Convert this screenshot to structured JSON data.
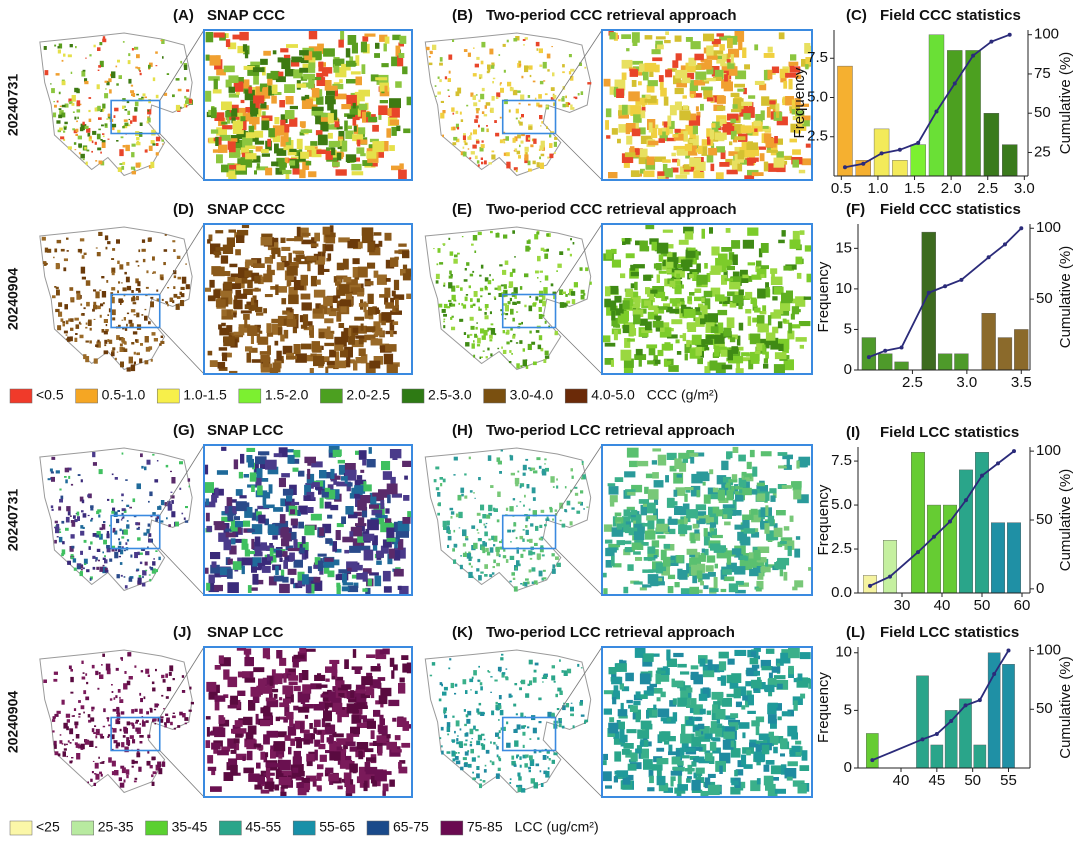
{
  "row_labels": [
    "20240731",
    "20240904",
    "20240731",
    "20240904"
  ],
  "panels": [
    {
      "label": "(A)",
      "title": "SNAP CCC"
    },
    {
      "label": "(B)",
      "title": "Two-period CCC retrieval approach"
    },
    {
      "label": "(D)",
      "title": "SNAP CCC"
    },
    {
      "label": "(E)",
      "title": "Two-period CCC retrieval approach"
    },
    {
      "label": "(G)",
      "title": "SNAP LCC"
    },
    {
      "label": "(H)",
      "title": "Two-period LCC retrieval approach"
    },
    {
      "label": "(J)",
      "title": "SNAP LCC"
    },
    {
      "label": "(K)",
      "title": "Two-period LCC retrieval approach"
    }
  ],
  "legends": [
    {
      "items": [
        {
          "label": "<0.5",
          "color": "#f03a2a"
        },
        {
          "label": "0.5-1.0",
          "color": "#f5a623"
        },
        {
          "label": "1.0-1.5",
          "color": "#f7ef4a"
        },
        {
          "label": "1.5-2.0",
          "color": "#7cf030"
        },
        {
          "label": "2.0-2.5",
          "color": "#4ca020"
        },
        {
          "label": "2.5-3.0",
          "color": "#2e7a14"
        },
        {
          "label": "3.0-4.0",
          "color": "#7a5010"
        },
        {
          "label": "4.0-5.0",
          "color": "#6b2a08"
        }
      ],
      "unit": "CCC (g/m²)"
    },
    {
      "items": [
        {
          "label": "<25",
          "color": "#fbf7a8"
        },
        {
          "label": "25-35",
          "color": "#b8eaa0"
        },
        {
          "label": "35-45",
          "color": "#5ad030"
        },
        {
          "label": "45-55",
          "color": "#2aa58a"
        },
        {
          "label": "55-65",
          "color": "#1890a8"
        },
        {
          "label": "65-75",
          "color": "#1a4a8a"
        },
        {
          "label": "75-85",
          "color": "#6a0a50"
        }
      ],
      "unit": "LCC (ug/cm²)"
    }
  ],
  "chart_data": [
    {
      "type": "bar",
      "panel": "(C)",
      "title": "Field CCC statistics",
      "x": [
        0.55,
        0.8,
        1.05,
        1.3,
        1.55,
        1.8,
        2.05,
        2.3,
        2.55,
        2.8
      ],
      "series": [
        {
          "values": [
            7,
            1,
            3,
            1,
            2,
            9,
            8,
            8,
            4,
            2
          ],
          "colors": [
            "#f5b030",
            "#f5b030",
            "#f3ea5a",
            "#f3ea5a",
            "#7cf030",
            "#6ae036",
            "#4ca020",
            "#4ca020",
            "#3a7a1c",
            "#3a7a1c"
          ]
        },
        {
          "type": "line",
          "axis": "y2",
          "color": "#2b2b7a",
          "values": [
            15.6,
            17.8,
            24.4,
            26.7,
            31.1,
            51.1,
            68.9,
            86.7,
            95.6,
            100
          ]
        }
      ],
      "xlim": [
        0.4,
        3.05
      ],
      "xticks": [
        0.5,
        {
          "value": 1,
          "label": "1.0"
        },
        1.5,
        {
          "value": 2,
          "label": "2.0"
        },
        2.5,
        {
          "value": 3,
          "label": "3.0"
        }
      ],
      "ylim": [
        0,
        9.3
      ],
      "yticks": [
        2.5,
        {
          "value": 5,
          "label": "5.0"
        },
        7.5
      ],
      "y2lim": [
        10,
        103
      ],
      "y2ticks": [
        25,
        50,
        75,
        100
      ],
      "ylabel": "Frequency",
      "y2label": "Cumulative (%)"
    },
    {
      "type": "bar",
      "panel": "(F)",
      "title": "Field CCC statistics",
      "x": [
        2.1,
        2.25,
        2.4,
        2.65,
        2.8,
        2.95,
        3.2,
        3.35,
        3.5
      ],
      "series": [
        {
          "values": [
            4,
            2,
            1,
            17,
            2,
            2,
            7,
            4,
            5
          ],
          "colors": [
            "#4e9a2a",
            "#4e9a2a",
            "#4e9a2a",
            "#3d6b1f",
            "#4e9a2a",
            "#4e9a2a",
            "#8b6a2b",
            "#8b6a2b",
            "#8b6a2b"
          ]
        },
        {
          "type": "line",
          "axis": "y2",
          "color": "#2b2b7a",
          "values": [
            9.1,
            13.6,
            15.9,
            54.5,
            59.1,
            63.6,
            79.5,
            88.6,
            100
          ]
        }
      ],
      "xlim": [
        2.0,
        3.58
      ],
      "xticks": [
        2.5,
        {
          "value": 3,
          "label": "3.0"
        },
        3.5
      ],
      "ylim": [
        0,
        18
      ],
      "yticks": [
        0,
        5,
        10,
        15
      ],
      "y2lim": [
        0,
        103
      ],
      "y2ticks": [
        50,
        100
      ],
      "ylabel": "Frequency",
      "y2label": "Cumulative (%)"
    },
    {
      "type": "bar",
      "panel": "(I)",
      "title": "Field LCC statistics",
      "x": [
        22,
        27,
        34,
        38,
        42,
        46,
        50,
        54,
        58
      ],
      "series": [
        {
          "values": [
            1,
            3,
            8,
            5,
            5,
            7,
            8,
            4,
            4
          ],
          "colors": [
            "#f5f3a0",
            "#c5f0a0",
            "#66cc33",
            "#66cc33",
            "#66cc33",
            "#2aa58a",
            "#2aa58a",
            "#1f90a5",
            "#1f90a5"
          ]
        },
        {
          "type": "line",
          "axis": "y2",
          "color": "#2b2b7a",
          "values": [
            2.2,
            8.9,
            26.7,
            37.8,
            48.9,
            64.4,
            82.2,
            91.1,
            100
          ]
        }
      ],
      "xlim": [
        19,
        62
      ],
      "xticks": [
        30,
        40,
        50,
        60
      ],
      "ylim": [
        0,
        8.3
      ],
      "yticks": [
        {
          "value": 0,
          "label": "0.0"
        },
        2.5,
        {
          "value": 5,
          "label": "5.0"
        },
        7.5
      ],
      "y2lim": [
        -3,
        103
      ],
      "y2ticks": [
        0,
        50,
        100
      ],
      "ylabel": "Frequency",
      "y2label": "Cumulative (%)"
    },
    {
      "type": "bar",
      "panel": "(L)",
      "title": "Field LCC statistics",
      "x": [
        36,
        43,
        45,
        47,
        49,
        51,
        53,
        55
      ],
      "series": [
        {
          "values": [
            3,
            8,
            2,
            5,
            6,
            2,
            10,
            9
          ],
          "colors": [
            "#66cc33",
            "#2aa58a",
            "#2aa58a",
            "#2aa58a",
            "#2aa58a",
            "#2aa58a",
            "#1f90a5",
            "#1f90a5"
          ]
        },
        {
          "type": "line",
          "axis": "y2",
          "color": "#2b2b7a",
          "values": [
            6.7,
            24.4,
            28.9,
            40,
            53.3,
            57.8,
            80,
            100
          ]
        }
      ],
      "xlim": [
        34,
        58
      ],
      "xticks": [
        40,
        45,
        50,
        55
      ],
      "ylim": [
        0,
        10.5
      ],
      "yticks": [
        0,
        5,
        10
      ],
      "y2lim": [
        0,
        103
      ],
      "y2ticks": [
        50,
        100
      ],
      "ylabel": "Frequency",
      "y2label": "Cumulative (%)"
    }
  ]
}
